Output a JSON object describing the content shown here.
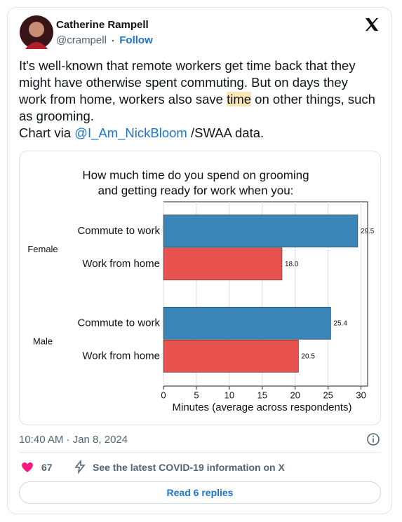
{
  "header": {
    "name": "Catherine Rampell",
    "handle": "@crampell",
    "follow": "Follow"
  },
  "body": {
    "segments": [
      "It's well-known that remote workers get time back that they might have otherwise spent commuting. But on days they work from home, workers also save ",
      "time",
      " on other things, such as grooming."
    ],
    "credit": [
      "Chart via ",
      "@I_Am_NickBloom",
      " /SWAA data."
    ]
  },
  "chart_data": {
    "type": "bar",
    "orientation": "horizontal",
    "title": [
      "How much time do you spend on grooming",
      "and getting ready for work when you:"
    ],
    "groups": [
      "Female",
      "Male"
    ],
    "series": [
      {
        "name": "Commute to work",
        "color": "#3b86b8",
        "values": [
          29.5,
          25.4
        ],
        "value_labels": [
          "29.5",
          "25.4"
        ]
      },
      {
        "name": "Work from home",
        "color": "#e8534f",
        "values": [
          18.0,
          20.5
        ],
        "value_labels": [
          "18.0",
          "20.5"
        ]
      }
    ],
    "xlabel": "Minutes (average across respondents)",
    "xlim": [
      0,
      31
    ],
    "xticks": [
      0,
      5,
      10,
      15,
      20,
      25,
      30
    ]
  },
  "footer": {
    "timestamp": "10:40 AM · Jan 8, 2024",
    "likes": "67",
    "covid": "See the latest COVID-19 information on X",
    "replies": "Read 6 replies"
  }
}
